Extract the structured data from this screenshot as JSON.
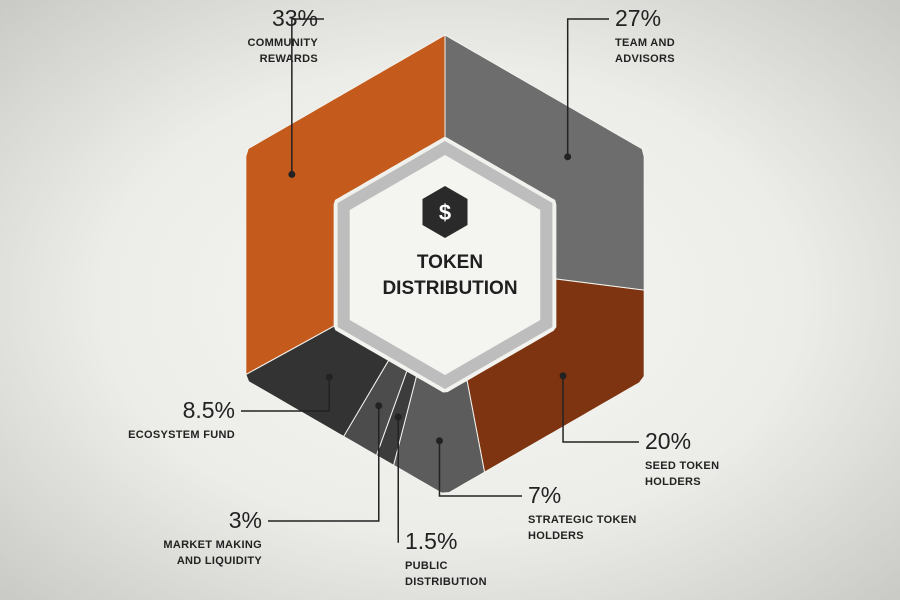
{
  "chart_data": {
    "type": "hex-donut",
    "center_icon": "$",
    "center_label": "TOKEN DISTRIBUTION",
    "categories": [
      "TEAM AND ADVISORS",
      "SEED TOKEN HOLDERS",
      "STRATEGIC TOKEN HOLDERS",
      "PUBLIC DISTRIBUTION",
      "MARKET MAKING AND LIQUIDITY",
      "ECOSYSTEM FUND",
      "COMMUNITY REWARDS"
    ],
    "values": [
      27,
      20,
      7,
      1.5,
      3,
      8.5,
      33
    ],
    "value_labels": [
      "27%",
      "20%",
      "7%",
      "1.5%",
      "3%",
      "8.5%",
      "33%"
    ],
    "colors": [
      "#6d6d6d",
      "#7e3410",
      "#5c5c5c",
      "#3c3c3c",
      "#4c4c4c",
      "#333333",
      "#c45a1c"
    ]
  }
}
